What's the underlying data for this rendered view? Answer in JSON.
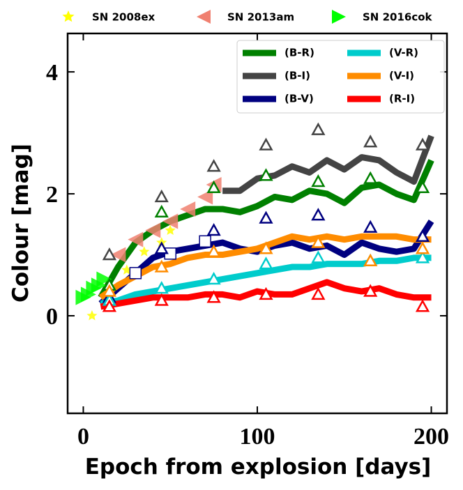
{
  "chart_data": {
    "type": "line",
    "xlabel": "Epoch from explosion [days]",
    "ylabel": "Colour [mag]",
    "xlim": [
      -9,
      209
    ],
    "ylim": [
      -1.6,
      4.63
    ],
    "xticks": [
      0,
      100,
      200
    ],
    "yticks": [
      0,
      2,
      4
    ],
    "legend": "upper right",
    "marker_x": [
      15,
      45,
      75,
      105,
      135,
      165,
      195
    ],
    "series": [
      {
        "name": "(B-R)",
        "color": "#008000",
        "x": [
          10,
          20,
          30,
          40,
          50,
          60,
          70,
          80,
          90,
          100,
          110,
          120,
          130,
          140,
          150,
          160,
          170,
          180,
          190,
          200
        ],
        "values": [
          0.3,
          0.8,
          1.2,
          1.4,
          1.55,
          1.65,
          1.75,
          1.75,
          1.7,
          1.8,
          1.95,
          1.9,
          2.05,
          2.0,
          1.85,
          2.1,
          2.15,
          2.0,
          1.9,
          2.55
        ],
        "marker_values": [
          0.5,
          1.7,
          2.1,
          2.3,
          2.2,
          2.25,
          2.1
        ]
      },
      {
        "name": "(B-I)",
        "color": "#444444",
        "x": [
          80,
          90,
          100,
          110,
          120,
          130,
          140,
          150,
          160,
          170,
          180,
          190,
          200
        ],
        "values": [
          2.05,
          2.05,
          2.25,
          2.3,
          2.45,
          2.35,
          2.55,
          2.4,
          2.6,
          2.55,
          2.35,
          2.2,
          2.95
        ],
        "marker_values": [
          1.0,
          1.95,
          2.45,
          2.8,
          3.05,
          2.85,
          2.8
        ]
      },
      {
        "name": "(B-V)",
        "color": "#000080",
        "x": [
          10,
          20,
          30,
          40,
          50,
          60,
          70,
          80,
          90,
          100,
          110,
          120,
          130,
          140,
          150,
          160,
          170,
          180,
          190,
          200
        ],
        "values": [
          0.2,
          0.45,
          0.7,
          0.95,
          1.05,
          1.1,
          1.15,
          1.2,
          1.1,
          1.05,
          1.15,
          1.2,
          1.1,
          1.15,
          1.0,
          1.2,
          1.1,
          1.05,
          1.1,
          1.55
        ],
        "marker_values": [
          0.3,
          1.1,
          1.4,
          1.6,
          1.65,
          1.45,
          1.3
        ]
      },
      {
        "name": "(V-R)",
        "color": "#00cccc",
        "x": [
          10,
          20,
          30,
          40,
          50,
          60,
          70,
          80,
          90,
          100,
          110,
          120,
          130,
          140,
          150,
          160,
          170,
          180,
          190,
          200
        ],
        "values": [
          0.2,
          0.25,
          0.35,
          0.4,
          0.45,
          0.5,
          0.55,
          0.6,
          0.65,
          0.7,
          0.75,
          0.8,
          0.8,
          0.85,
          0.85,
          0.85,
          0.9,
          0.9,
          0.95,
          0.95
        ],
        "marker_values": [
          0.25,
          0.45,
          0.6,
          0.85,
          0.95,
          0.9,
          0.95
        ]
      },
      {
        "name": "(V-I)",
        "color": "#ff8c00",
        "x": [
          10,
          20,
          30,
          40,
          50,
          60,
          70,
          80,
          90,
          100,
          110,
          120,
          130,
          140,
          150,
          160,
          170,
          180,
          190,
          200
        ],
        "values": [
          0.3,
          0.5,
          0.65,
          0.8,
          0.85,
          0.95,
          1.0,
          1.0,
          1.05,
          1.1,
          1.2,
          1.3,
          1.25,
          1.3,
          1.25,
          1.3,
          1.3,
          1.3,
          1.25,
          1.25
        ],
        "marker_values": [
          0.4,
          0.8,
          1.05,
          1.1,
          1.2,
          0.9,
          1.1
        ]
      },
      {
        "name": "(R-I)",
        "color": "#ff0000",
        "x": [
          10,
          20,
          30,
          40,
          50,
          60,
          70,
          80,
          90,
          100,
          110,
          120,
          130,
          140,
          150,
          160,
          170,
          180,
          190,
          200
        ],
        "values": [
          0.15,
          0.2,
          0.25,
          0.3,
          0.3,
          0.3,
          0.35,
          0.35,
          0.3,
          0.4,
          0.35,
          0.35,
          0.45,
          0.55,
          0.45,
          0.4,
          0.45,
          0.35,
          0.3,
          0.3
        ],
        "marker_values": [
          0.15,
          0.25,
          0.3,
          0.35,
          0.35,
          0.4,
          0.15
        ]
      }
    ],
    "objects": [
      {
        "name": "SN 2008ex",
        "color": "#ffff00",
        "marker": "star",
        "x": [
          5,
          15,
          25,
          35,
          45,
          50
        ],
        "values": [
          0,
          0.35,
          0.75,
          1.05,
          1.2,
          1.4
        ]
      },
      {
        "name": "SN 2013am",
        "color": "#f08070",
        "marker": "left",
        "x": [
          20,
          30,
          40,
          50,
          60,
          70,
          75
        ],
        "values": [
          1.0,
          1.25,
          1.4,
          1.55,
          1.75,
          1.95,
          2.15
        ]
      },
      {
        "name": "SN 2016cok",
        "color": "#00ff00",
        "marker": "right",
        "x": [
          0,
          3,
          6,
          9,
          12
        ],
        "values": [
          0.3,
          0.35,
          0.45,
          0.5,
          0.6
        ]
      }
    ],
    "squares": {
      "x": [
        30,
        50,
        70
      ],
      "values": [
        0.7,
        1.02,
        1.22
      ]
    }
  }
}
